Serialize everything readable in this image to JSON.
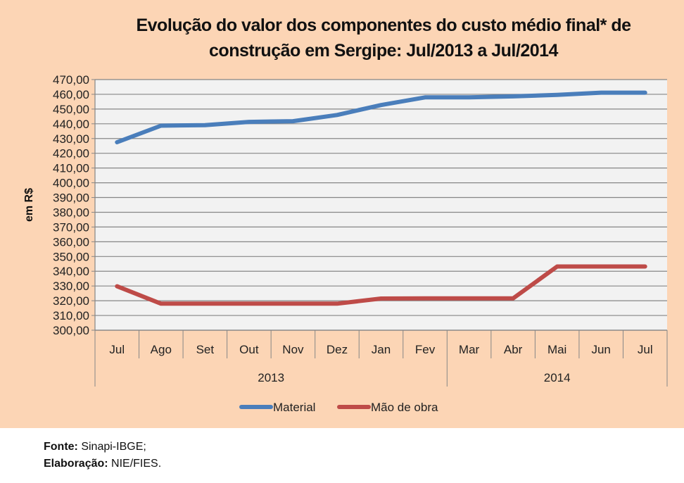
{
  "chart_data": {
    "type": "line",
    "title": "Evolução do valor dos componentes do custo médio final* de construção em Sergipe: Jul/2013 a Jul/2014",
    "title_lines": [
      "Evolução do valor dos componentes do custo médio final* de",
      "construção em Sergipe: Jul/2013 a Jul/2014"
    ],
    "xlabel": "",
    "ylabel": "em R$",
    "ylim": [
      300,
      470
    ],
    "ytick_step": 10,
    "yticks": [
      "470,00",
      "460,00",
      "450,00",
      "440,00",
      "430,00",
      "420,00",
      "410,00",
      "400,00",
      "390,00",
      "380,00",
      "370,00",
      "360,00",
      "350,00",
      "340,00",
      "330,00",
      "320,00",
      "310,00",
      "300,00"
    ],
    "categories": [
      "Jul",
      "Ago",
      "Set",
      "Out",
      "Nov",
      "Dez",
      "Jan",
      "Fev",
      "Mar",
      "Abr",
      "Mai",
      "Jun",
      "Jul"
    ],
    "year_groups": [
      {
        "label": "2013",
        "start": 0,
        "count": 8
      },
      {
        "label": "2014",
        "start": 8,
        "count": 5
      }
    ],
    "grid": true,
    "legend_position": "bottom",
    "series": [
      {
        "name": "Material",
        "color": "#4a7ebb",
        "values": [
          427.5,
          438.7,
          439.1,
          441.3,
          441.8,
          446.0,
          452.7,
          457.9,
          457.9,
          458.6,
          459.6,
          461.1,
          461.1
        ]
      },
      {
        "name": "Mão de obra",
        "color": "#be4b48",
        "values": [
          329.8,
          318.0,
          318.0,
          318.0,
          318.0,
          318.0,
          321.5,
          321.6,
          321.6,
          321.6,
          343.2,
          343.2,
          343.2
        ]
      }
    ]
  },
  "footer": {
    "source_label": "Fonte:",
    "source_value": " Sinapi-IBGE;",
    "credit_label": "Elaboração:",
    "credit_value": "  NIE/FIES."
  }
}
